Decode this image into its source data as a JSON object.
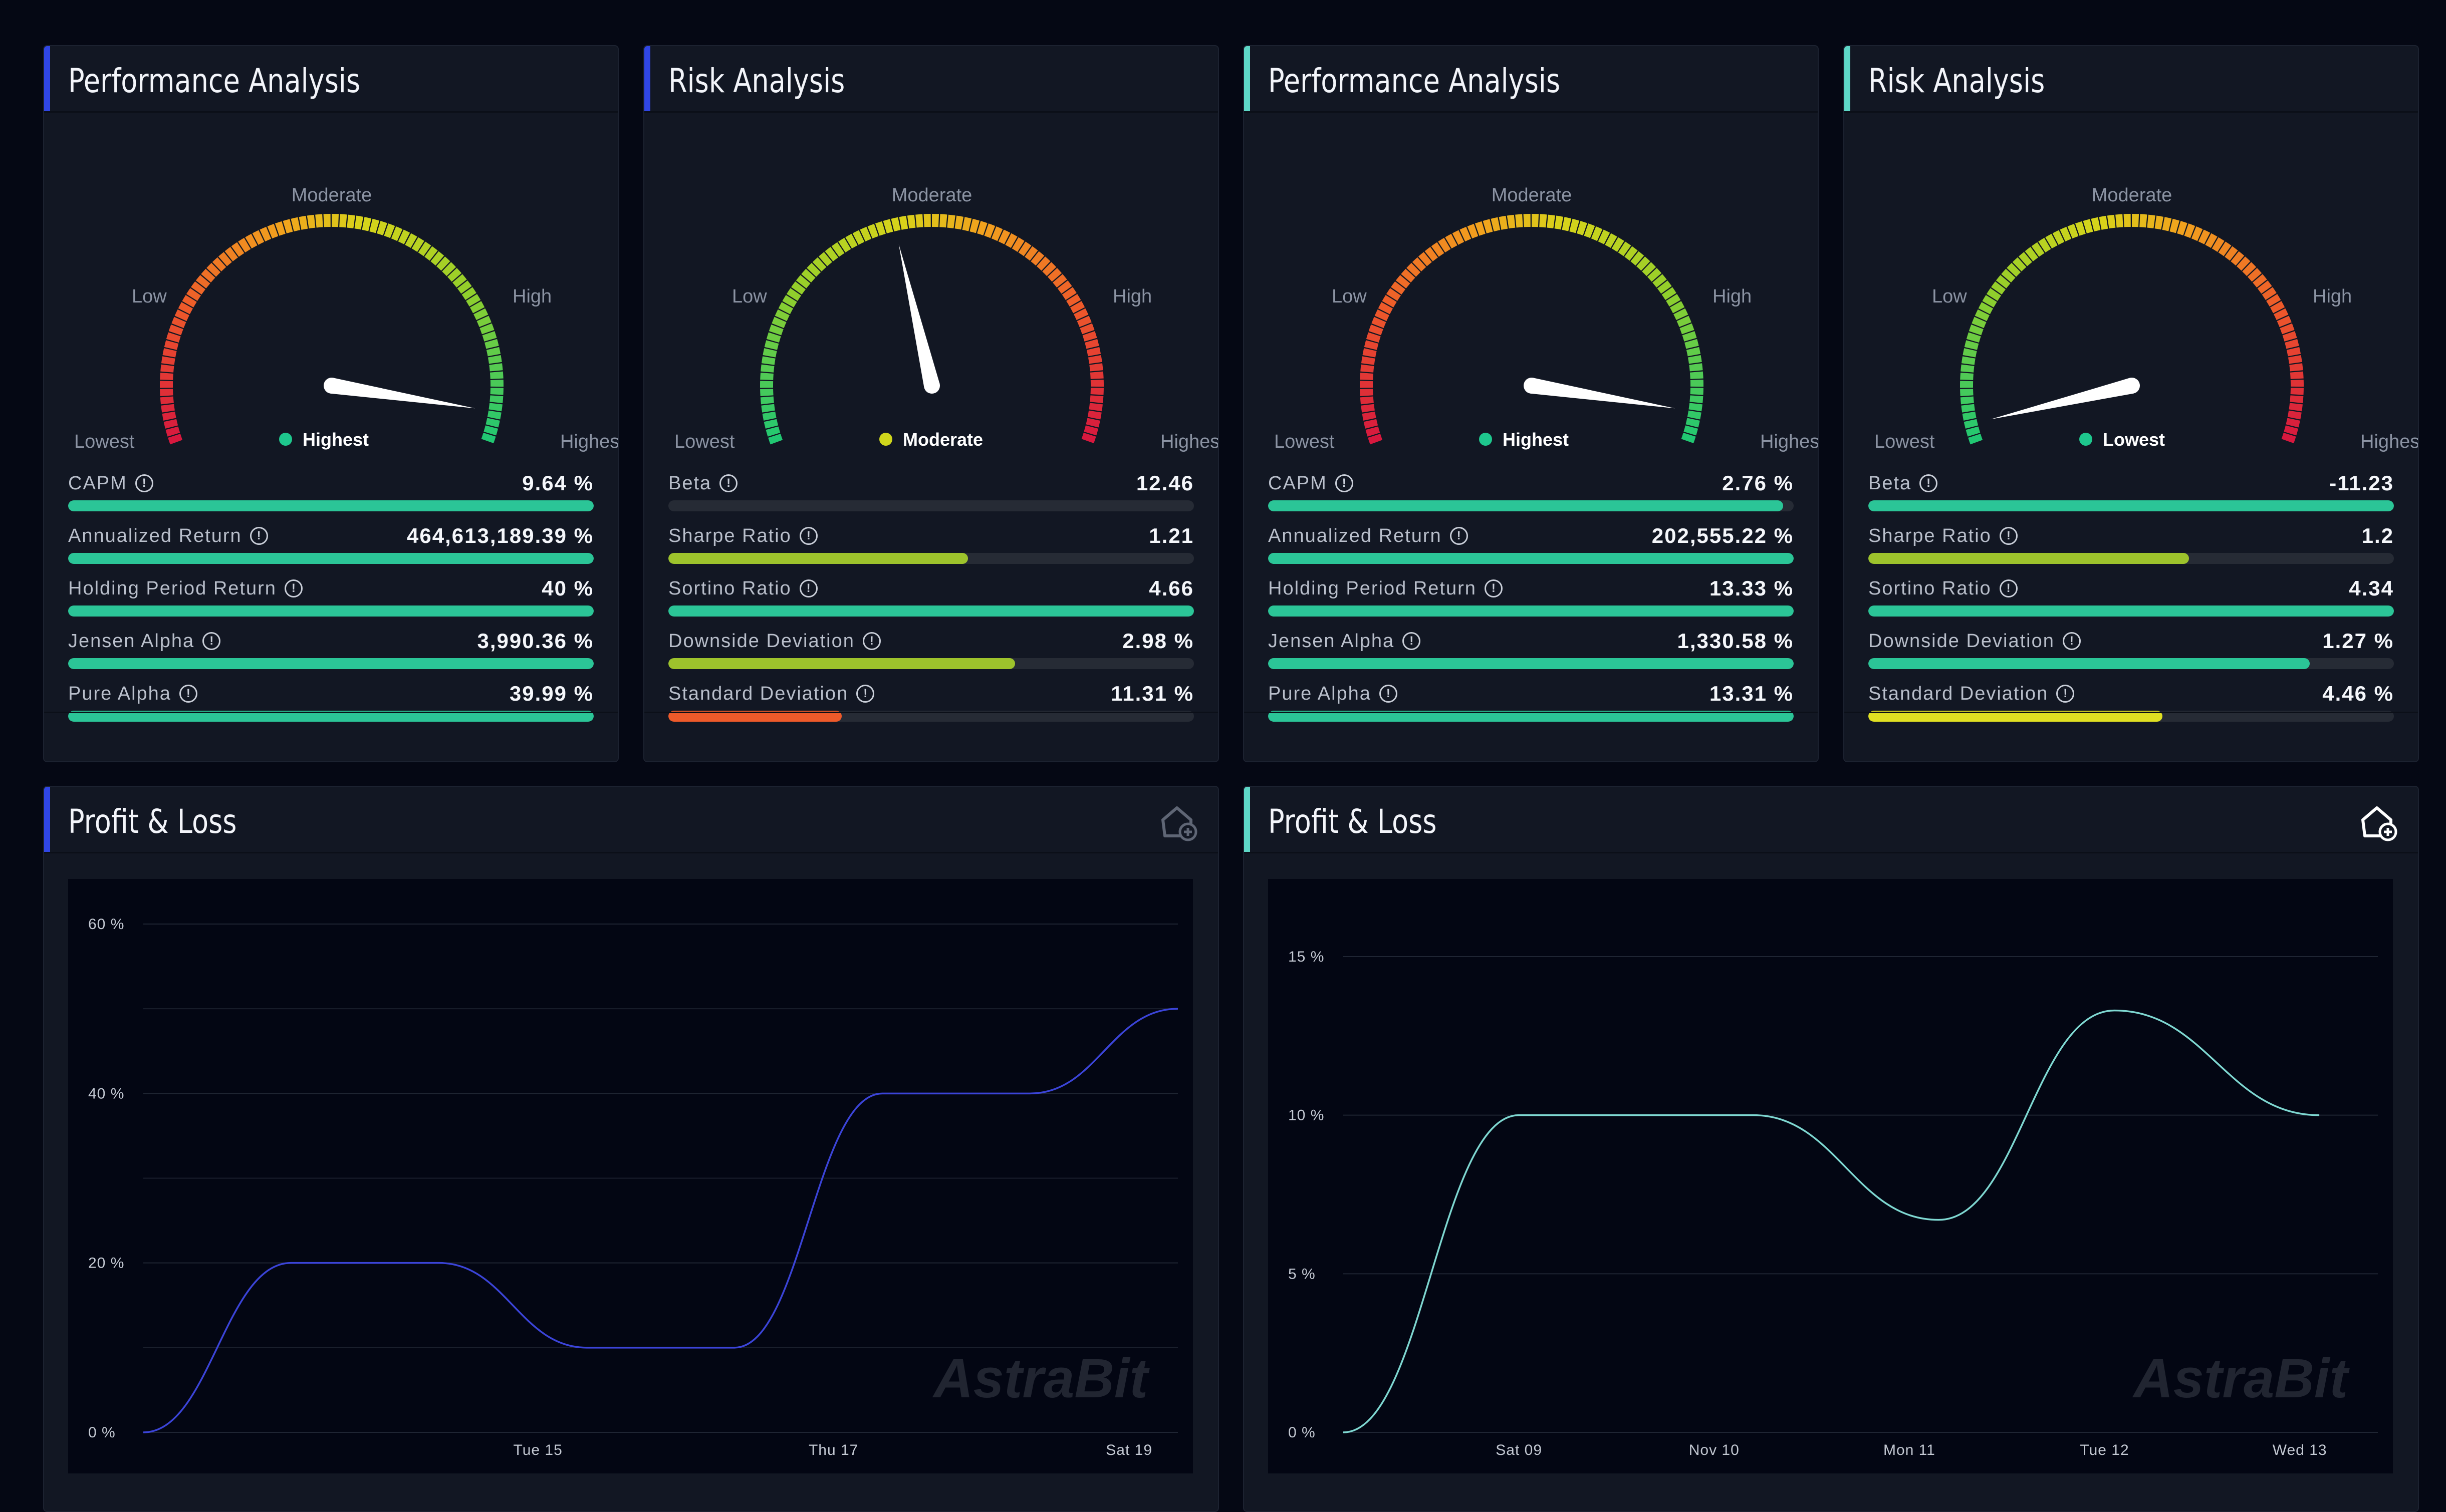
{
  "gauge_labels": {
    "lowest": "Lowest",
    "low": "Low",
    "moderate": "Moderate",
    "high": "High",
    "highest": "Highest"
  },
  "cards": [
    {
      "title": "Performance Analysis",
      "accent": "#3046e6",
      "direction": "ascending",
      "legend": {
        "text": "Highest",
        "color": "#1ec78d"
      },
      "needle_level": 0.95,
      "metrics": [
        {
          "label": "CAPM",
          "value": "9.64 %",
          "fill": 1.0,
          "color": "#2bc597"
        },
        {
          "label": "Annualized Return",
          "value": "464,613,189.39 %",
          "fill": 1.0,
          "color": "#2bc597"
        },
        {
          "label": "Holding Period Return",
          "value": "40 %",
          "fill": 1.0,
          "color": "#2bc597"
        },
        {
          "label": "Jensen Alpha",
          "value": "3,990.36 %",
          "fill": 1.0,
          "color": "#2bc597"
        },
        {
          "label": "Pure Alpha",
          "value": "39.99 %",
          "fill": 1.0,
          "color": "#2bc597"
        }
      ]
    },
    {
      "title": "Risk Analysis",
      "accent": "#3046e6",
      "direction": "descending",
      "legend": {
        "text": "Moderate",
        "color": "#cfd61c"
      },
      "needle_level": 0.44,
      "metrics": [
        {
          "label": "Beta",
          "value": "12.46",
          "fill": 0.0,
          "color": "#2bc597"
        },
        {
          "label": "Sharpe Ratio",
          "value": "1.21",
          "fill": 0.57,
          "color": "#9dc32c"
        },
        {
          "label": "Sortino Ratio",
          "value": "4.66",
          "fill": 1.0,
          "color": "#2bc597"
        },
        {
          "label": "Downside Deviation",
          "value": "2.98 %",
          "fill": 0.66,
          "color": "#9dc32c"
        },
        {
          "label": "Standard Deviation",
          "value": "11.31 %",
          "fill": 0.33,
          "color": "#ee5a2a"
        }
      ]
    },
    {
      "title": "Performance Analysis",
      "accent": "#5ed7c7",
      "direction": "ascending",
      "legend": {
        "text": "Highest",
        "color": "#1ec78d"
      },
      "needle_level": 0.95,
      "metrics": [
        {
          "label": "CAPM",
          "value": "2.76 %",
          "fill": 0.98,
          "color": "#2bc597"
        },
        {
          "label": "Annualized Return",
          "value": "202,555.22 %",
          "fill": 1.0,
          "color": "#2bc597"
        },
        {
          "label": "Holding Period Return",
          "value": "13.33 %",
          "fill": 1.0,
          "color": "#2bc597"
        },
        {
          "label": "Jensen Alpha",
          "value": "1,330.58 %",
          "fill": 1.0,
          "color": "#2bc597"
        },
        {
          "label": "Pure Alpha",
          "value": "13.31 %",
          "fill": 1.0,
          "color": "#2bc597"
        }
      ]
    },
    {
      "title": "Risk Analysis",
      "accent": "#5ed7c7",
      "direction": "descending",
      "legend": {
        "text": "Lowest",
        "color": "#1ec78d"
      },
      "needle_level": 0.03,
      "metrics": [
        {
          "label": "Beta",
          "value": "-11.23",
          "fill": 1.0,
          "color": "#2bc597"
        },
        {
          "label": "Sharpe Ratio",
          "value": "1.2",
          "fill": 0.61,
          "color": "#9dc32c"
        },
        {
          "label": "Sortino Ratio",
          "value": "4.34",
          "fill": 1.0,
          "color": "#2bc597"
        },
        {
          "label": "Downside Deviation",
          "value": "1.27 %",
          "fill": 0.84,
          "color": "#2bc597"
        },
        {
          "label": "Standard Deviation",
          "value": "4.46 %",
          "fill": 0.56,
          "color": "#e0e022"
        }
      ]
    }
  ],
  "pl_cards": [
    {
      "title": "Profit & Loss",
      "accent": "#3046e6",
      "icon": "home-add-icon",
      "icon_color": "#5f6675"
    },
    {
      "title": "Profit & Loss",
      "accent": "#5ed7c7",
      "icon": "home-add-icon",
      "icon_color": "#ffffff"
    }
  ],
  "watermark": "AstraBit",
  "chart_data": [
    {
      "type": "line",
      "color": "#3b44d8",
      "ylim": [
        0,
        60
      ],
      "yticks": [
        0,
        20,
        40,
        60
      ],
      "ytick_labels": [
        "0 %",
        "20 %",
        "40 %",
        "60 %"
      ],
      "xlim": [
        0,
        7
      ],
      "xticks": [
        {
          "x": 2.67,
          "label": "Tue 15"
        },
        {
          "x": 4.67,
          "label": "Thu 17"
        },
        {
          "x": 6.67,
          "label": "Sat 19"
        }
      ],
      "series": [
        {
          "x": [
            0,
            1,
            2,
            3,
            4,
            5,
            6,
            7
          ],
          "y": [
            0,
            20,
            20,
            10,
            10,
            40,
            40,
            50
          ]
        }
      ]
    },
    {
      "type": "line",
      "color": "#7fd8d2",
      "ylim": [
        0,
        15
      ],
      "yticks": [
        0,
        5,
        10,
        15
      ],
      "ytick_labels": [
        "0 %",
        "5 %",
        "10 %",
        "15 %"
      ],
      "xlim": [
        0,
        5.3
      ],
      "xticks": [
        {
          "x": 0.9,
          "label": "Sat 09"
        },
        {
          "x": 1.9,
          "label": "Nov 10"
        },
        {
          "x": 2.9,
          "label": "Mon 11"
        },
        {
          "x": 3.9,
          "label": "Tue 12"
        },
        {
          "x": 4.9,
          "label": "Wed 13"
        }
      ],
      "series": [
        {
          "x": [
            0,
            0.9,
            2.1,
            3.05,
            3.95,
            5.0
          ],
          "y": [
            0,
            10,
            10,
            6.7,
            13.3,
            10
          ]
        }
      ]
    }
  ]
}
